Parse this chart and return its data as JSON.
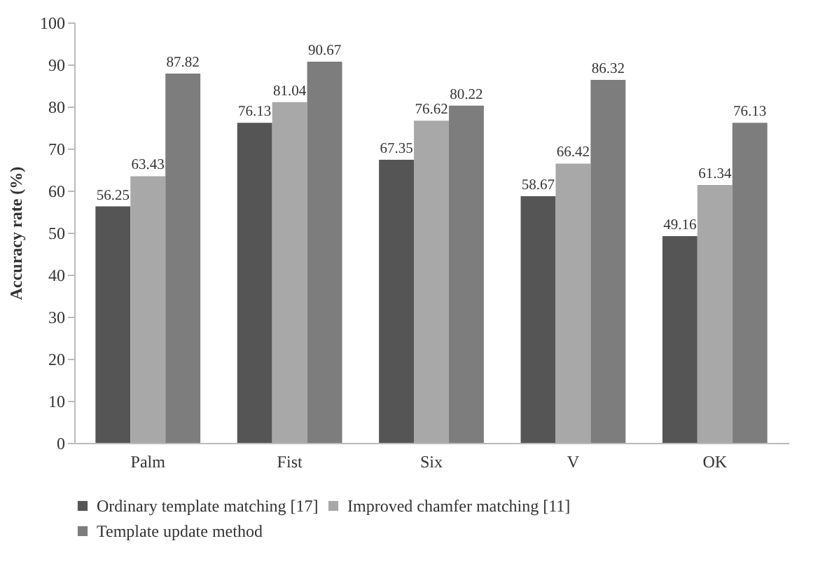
{
  "chart_data": {
    "type": "bar",
    "ylabel": "Accuracy rate (%)",
    "categories": [
      "Palm",
      "Fist",
      "Six",
      "V",
      "OK"
    ],
    "series": [
      {
        "name": "Ordinary template matching [17]",
        "color": "#555555",
        "values": [
          56.25,
          76.13,
          67.35,
          58.67,
          49.16
        ]
      },
      {
        "name": "Improved chamfer matching [11]",
        "color": "#a8a8a8",
        "values": [
          63.43,
          81.04,
          76.62,
          66.42,
          61.34
        ]
      },
      {
        "name": "Template update method",
        "color": "#7d7d7d",
        "values": [
          87.82,
          90.67,
          80.22,
          86.32,
          76.13
        ]
      }
    ],
    "ylim": [
      0,
      100
    ],
    "yticks": [
      0,
      10,
      20,
      30,
      40,
      50,
      60,
      70,
      80,
      90,
      100
    ],
    "grid": false,
    "legend": "bottom",
    "data_labels": true
  }
}
